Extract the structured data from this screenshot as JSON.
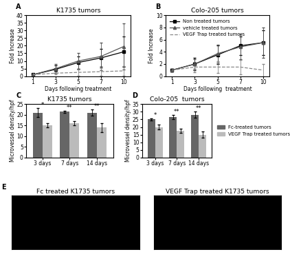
{
  "chart_data": [
    {
      "panel": "A",
      "type": "line",
      "title": "K1735 tumors",
      "x_label": "Days following treatment",
      "y_label": "Fold Increase",
      "categories": [
        "1",
        "3",
        "5",
        "7",
        "10"
      ],
      "ylim": [
        0,
        40
      ],
      "yticks": [
        0,
        5,
        10,
        15,
        20,
        25,
        30,
        35,
        40
      ],
      "series": [
        {
          "name": "Non treated tumors",
          "color": "#000000",
          "marker": "square",
          "line_style": "solid",
          "values": [
            1,
            4.5,
            9,
            12,
            16
          ],
          "errors": [
            0.5,
            2.5,
            4,
            6,
            10
          ]
        },
        {
          "name": "vehicle treated tumors",
          "color": "#555555",
          "marker": "triangle",
          "line_style": "solid",
          "values": [
            1,
            5,
            10,
            13,
            19.5
          ],
          "errors": [
            0.5,
            3,
            5,
            9,
            15
          ]
        },
        {
          "name": "VEGF Trap treated tumors",
          "color": "#888888",
          "marker": "none",
          "line_style": "dashed",
          "values": [
            1,
            2,
            2.5,
            3,
            3.5
          ],
          "errors": [
            0.3,
            1,
            2,
            2.5,
            3
          ]
        }
      ]
    },
    {
      "panel": "B",
      "type": "line",
      "title": "Colo-205 tumors",
      "x_label": "Days following  treatment",
      "y_label": "Fold Increase",
      "categories": [
        "1",
        "3",
        "5",
        "7",
        "10"
      ],
      "ylim": [
        0,
        10
      ],
      "yticks": [
        0,
        2,
        4,
        6,
        8,
        10
      ],
      "legend": "upper left",
      "series": [
        {
          "name": "Non treated tumors",
          "color": "#000000",
          "marker": "square",
          "line_style": "solid",
          "values": [
            1,
            2,
            3.5,
            5,
            5.5
          ],
          "errors": [
            0.2,
            1,
            1.5,
            1.5,
            2
          ]
        },
        {
          "name": "vehicle treated tumors",
          "color": "#555555",
          "marker": "triangle",
          "line_style": "solid",
          "values": [
            1,
            2,
            3.7,
            4.8,
            5.5
          ],
          "errors": [
            0.2,
            0.8,
            1.5,
            2,
            2.5
          ]
        },
        {
          "name": "VEGF Trap treated tumors",
          "color": "#888888",
          "marker": "none",
          "line_style": "dashed",
          "values": [
            1,
            1.5,
            1.5,
            1.5,
            1.0
          ],
          "errors": [
            0.2,
            0.8,
            1,
            1.2,
            1
          ]
        }
      ]
    },
    {
      "panel": "C",
      "type": "bar",
      "title": "K1735 tumors",
      "y_label": "Microvessel density/hpf",
      "categories": [
        "3 days",
        "7 days",
        "14 days"
      ],
      "ylim": [
        0,
        25
      ],
      "yticks": [
        0,
        5,
        10,
        15,
        20,
        25
      ],
      "significance": [
        "*",
        "**",
        "**"
      ],
      "series": [
        {
          "name": "Fc-treated tumors",
          "color": "#666666",
          "values": [
            21,
            21.5,
            21
          ],
          "errors": [
            2,
            0.5,
            1.5
          ]
        },
        {
          "name": "VEGF Trap treated tumors",
          "color": "#bbbbbb",
          "values": [
            15,
            16,
            14
          ],
          "errors": [
            1,
            1,
            2
          ]
        }
      ]
    },
    {
      "panel": "D",
      "type": "bar",
      "title": "Colo-205  tumors",
      "y_label": "Microvessel density/hpf",
      "categories": [
        "3 days",
        "7 days",
        "14 days"
      ],
      "ylim": [
        0,
        35
      ],
      "yticks": [
        0,
        5,
        10,
        15,
        20,
        25,
        30,
        35
      ],
      "legend": "right",
      "significance": [
        "*",
        "**",
        "**"
      ],
      "series": [
        {
          "name": "Fc-treated tumors",
          "color": "#666666",
          "values": [
            25,
            26.5,
            28
          ],
          "errors": [
            0.8,
            1.5,
            2
          ]
        },
        {
          "name": "VEGF Trap treated tumors",
          "color": "#bbbbbb",
          "values": [
            20,
            17.5,
            15
          ],
          "errors": [
            1.5,
            1.5,
            2
          ]
        }
      ]
    },
    {
      "panel": "E",
      "type": "image",
      "title": "Fc treated K1735 tumors"
    },
    {
      "type": "image",
      "title": "VEGF Trap treated K1735 tumors"
    }
  ]
}
